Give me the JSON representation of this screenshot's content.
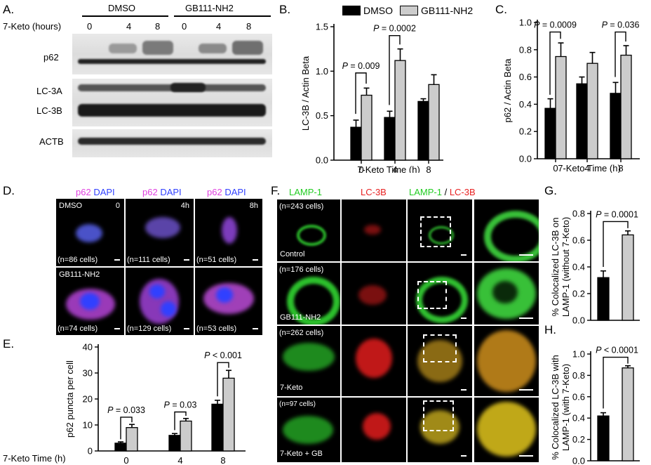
{
  "panel_letters": {
    "a": "A.",
    "b": "B.",
    "c": "C.",
    "d": "D.",
    "e": "E.",
    "f": "F.",
    "g": "G.",
    "h": "H."
  },
  "panel_a": {
    "groups": [
      "DMSO",
      "GB111-NH2"
    ],
    "row_label": "7-Keto (hours)",
    "times": [
      "0",
      "4",
      "8",
      "0",
      "4",
      "8"
    ],
    "bands": [
      "p62",
      "LC-3A",
      "LC-3B",
      "ACTB"
    ]
  },
  "legend": {
    "dmso": "DMSO",
    "gb": "GB111-NH2"
  },
  "colors": {
    "dmso": "#000000",
    "gb": "#cccccc",
    "lamp1": "#22dd22",
    "lc3b": "#e82020",
    "p62": "#e040e0",
    "dapi": "#3040ff"
  },
  "panel_d": {
    "header": [
      "p62",
      "DAPI"
    ],
    "rows": [
      "DMSO",
      "GB111-NH2"
    ],
    "times": [
      "0",
      "4h",
      "8h"
    ],
    "counts": [
      "(n=86 cells)",
      "(n=111 cells)",
      "(n=51 cells)",
      "(n=74 cells)",
      "(n=129 cells)",
      "(n=53 cells)"
    ]
  },
  "panel_f": {
    "header_lamp": "LAMP-1",
    "header_lc3b": "LC-3B",
    "header_slash": " / ",
    "rows": [
      "Control",
      "GB111-NH2",
      "7-Keto",
      "7-Keto + GB"
    ],
    "counts": [
      "(n=243 cells)",
      "(n=176 cells)",
      "(n=262 cells)",
      "(n=97 cells)"
    ]
  },
  "chart_data": [
    {
      "panel": "B",
      "type": "bar",
      "categories": [
        "0",
        "4",
        "8"
      ],
      "series": [
        {
          "name": "DMSO",
          "values": [
            0.37,
            0.48,
            0.66
          ],
          "errors": [
            0.08,
            0.07,
            0.03
          ]
        },
        {
          "name": "GB111-NH2",
          "values": [
            0.73,
            1.12,
            0.85
          ],
          "errors": [
            0.08,
            0.13,
            0.11
          ]
        }
      ],
      "xlabel": "7-Keto Time (h)",
      "ylabel": "LC-3B / Actin Beta",
      "ylim": [
        0,
        1.5
      ],
      "yticks": [
        "0.0",
        "0.5",
        "1.0",
        "1.5"
      ],
      "annotations": [
        {
          "text": "P = 0.009",
          "group": 0
        },
        {
          "text": "P = 0.0002",
          "group": 1
        }
      ]
    },
    {
      "panel": "C",
      "type": "bar",
      "categories": [
        "0",
        "4",
        "8"
      ],
      "series": [
        {
          "name": "DMSO",
          "values": [
            0.37,
            0.55,
            0.48
          ],
          "errors": [
            0.07,
            0.05,
            0.08
          ]
        },
        {
          "name": "GB111-NH2",
          "values": [
            0.75,
            0.7,
            0.76
          ],
          "errors": [
            0.1,
            0.08,
            0.07
          ]
        }
      ],
      "xlabel": "7-Keto Time (h)",
      "ylabel": "p62 / Actin Beta",
      "ylim": [
        0,
        1.0
      ],
      "yticks": [
        "0.0",
        "0.2",
        "0.4",
        "0.6",
        "0.8",
        "1.0"
      ],
      "annotations": [
        {
          "text": "P = 0.0009",
          "group": 0
        },
        {
          "text": "P = 0.036",
          "group": 2
        }
      ]
    },
    {
      "panel": "E",
      "type": "bar",
      "categories": [
        "0",
        "4",
        "8"
      ],
      "series": [
        {
          "name": "DMSO",
          "values": [
            3,
            6,
            18
          ],
          "errors": [
            0.5,
            0.7,
            1.5
          ]
        },
        {
          "name": "GB111-NH2",
          "values": [
            9,
            11.5,
            28
          ],
          "errors": [
            1.2,
            1.0,
            3.0
          ]
        }
      ],
      "xlabel": "7-Keto Time (h)",
      "ylabel": "p62 puncta per cell",
      "ylim": [
        0,
        40
      ],
      "yticks": [
        "0",
        "10",
        "20",
        "30",
        "40"
      ],
      "annotations": [
        {
          "text": "P = 0.033",
          "group": 0
        },
        {
          "text": "P = 0.03",
          "group": 1
        },
        {
          "text": "P < 0.001",
          "group": 2
        }
      ]
    },
    {
      "panel": "G",
      "type": "bar",
      "categories": [
        "DMSO",
        "GB111-NH2"
      ],
      "values": [
        0.32,
        0.64
      ],
      "errors": [
        0.05,
        0.03
      ],
      "ylabel": "% Colocalized LC-3B on LAMP-1 (without 7-Keto)",
      "ylim": [
        0,
        0.8
      ],
      "yticks": [
        "0.0",
        "0.2",
        "0.4",
        "0.6",
        "0.8"
      ],
      "annotations": [
        {
          "text": "P = 0.0001"
        }
      ]
    },
    {
      "panel": "H",
      "type": "bar",
      "categories": [
        "DMSO",
        "GB111-NH2"
      ],
      "values": [
        0.42,
        0.87
      ],
      "errors": [
        0.03,
        0.02
      ],
      "ylabel": "% Colocalized LC-3B with LAMP-1 (with 7-Keto)",
      "ylim": [
        0,
        1.0
      ],
      "yticks": [
        "0.0",
        "0.2",
        "0.4",
        "0.6",
        "0.8",
        "1.0"
      ],
      "annotations": [
        {
          "text": "P < 0.0001"
        }
      ]
    }
  ]
}
